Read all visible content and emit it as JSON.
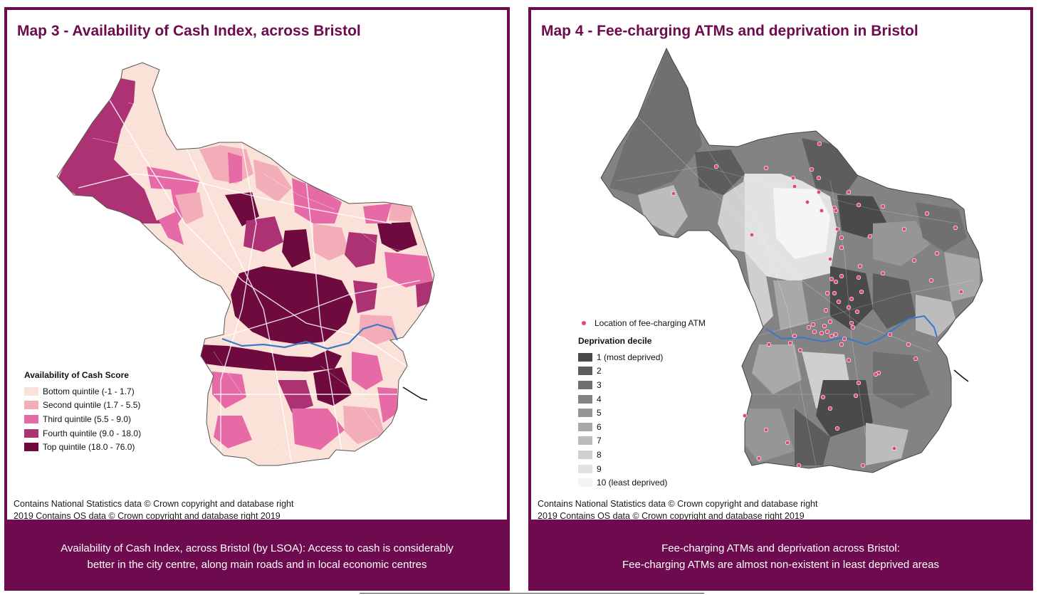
{
  "left_panel": {
    "title": "Map 3 - Availability of Cash Index, across Bristol",
    "legend": {
      "title": "Availability of Cash Score",
      "items": [
        {
          "label": "Bottom quintile (-1 - 1.7)",
          "color": "#fbe2d9"
        },
        {
          "label": "Second quintile (1.7 - 5.5)",
          "color": "#f2adb9"
        },
        {
          "label": "Third quintile (5.5 - 9.0)",
          "color": "#e56aa6"
        },
        {
          "label": "Fourth quintile (9.0 - 18.0)",
          "color": "#ad3274"
        },
        {
          "label": "Top quintile (18.0 - 76.0)",
          "color": "#6e0a3e"
        }
      ]
    },
    "credit_line1": "Contains National Statistics data © Crown copyright and database right",
    "credit_line2": "2019 Contains OS data © Crown copyright and database right 2019",
    "caption_line1": "Availability of Cash Index, across Bristol (by LSOA): Access to cash is considerably",
    "caption_line2": "better in the city centre, along main roads and in local economic centres"
  },
  "right_panel": {
    "title": "Map 4 - Fee-charging ATMs and deprivation in Bristol",
    "atm_legend_label": "Location of fee-charging ATM",
    "atm_color": "#e0487f",
    "legend": {
      "title": "Deprivation decile",
      "items": [
        {
          "label": "1 (most deprived)",
          "color": "#4a4a4a"
        },
        {
          "label": "2",
          "color": "#5d5d5d"
        },
        {
          "label": "3",
          "color": "#707070"
        },
        {
          "label": "4",
          "color": "#838383"
        },
        {
          "label": "5",
          "color": "#969696"
        },
        {
          "label": "6",
          "color": "#a9a9a9"
        },
        {
          "label": "7",
          "color": "#bcbcbc"
        },
        {
          "label": "8",
          "color": "#cfcfcf"
        },
        {
          "label": "9",
          "color": "#e2e2e2"
        },
        {
          "label": "10 (least deprived)",
          "color": "#f5f5f5"
        }
      ]
    },
    "credit_line1": "Contains National Statistics data © Crown copyright and database right",
    "credit_line2": "2019 Contains OS data © Crown copyright and database right 2019",
    "caption_line1": "Fee-charging ATMs and deprivation across Bristol:",
    "caption_line2": "Fee-charging ATMs are almost non-existent in least deprived areas"
  },
  "colors": {
    "brand": "#6e0a4e",
    "river": "#3a78c8"
  }
}
